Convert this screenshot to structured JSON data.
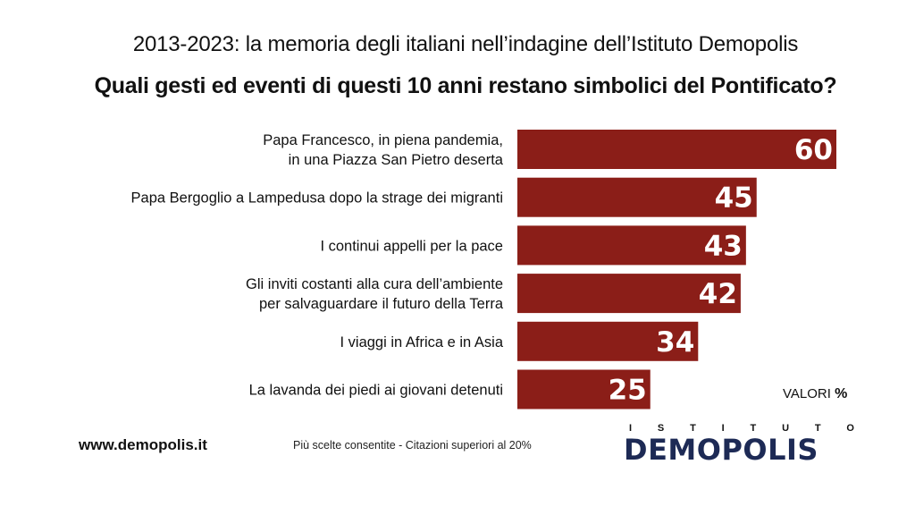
{
  "subtitle": "2013-2023: la memoria degli italiani nell’indagine dell’Istituto Demopolis",
  "title": "Quali gesti ed eventi di questi 10 anni restano simbolici del Pontificato?",
  "chart_data": {
    "type": "bar",
    "orientation": "horizontal",
    "categories": [
      [
        "Papa Francesco, in piena pandemia,",
        "in una Piazza San Pietro deserta"
      ],
      [
        "Papa Bergoglio a Lampedusa dopo la strage dei migranti"
      ],
      [
        "I continui appelli per la pace"
      ],
      [
        "Gli inviti costanti alla cura dell’ambiente",
        "per salvaguardare il futuro della Terra"
      ],
      [
        "I viaggi in Africa e in Asia"
      ],
      [
        "La lavanda dei piedi ai giovani detenuti"
      ]
    ],
    "values": [
      60,
      45,
      43,
      42,
      34,
      25
    ],
    "bar_color": "#8b1e18",
    "label_color": "#ffffff",
    "xlim": [
      0,
      60
    ],
    "grid": false,
    "legend": "none"
  },
  "unit_note": {
    "text": "VALORI",
    "symbol": "%"
  },
  "footer": {
    "url": "www.demopolis.it",
    "note": "Più scelte consentite - Citazioni superiori al 20%"
  },
  "logo": {
    "top_letters": [
      "I",
      "S",
      "T",
      "I",
      "T",
      "U",
      "T",
      "O"
    ],
    "pre": "DEM",
    "o": "O",
    "post": "POLIS"
  }
}
